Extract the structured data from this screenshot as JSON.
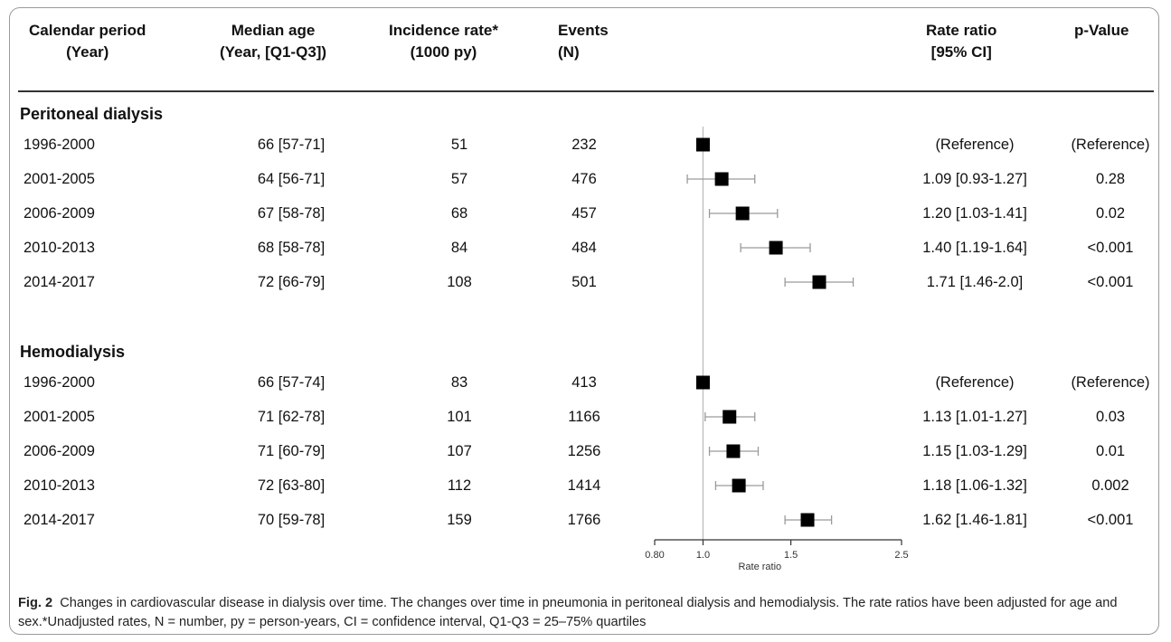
{
  "headers": {
    "period": [
      "Calendar period",
      "(Year)"
    ],
    "age": [
      "Median age",
      "(Year, [Q1-Q3])"
    ],
    "incidence": [
      "Incidence rate*",
      "(1000 py)"
    ],
    "events": [
      "Events",
      "(N)"
    ],
    "ratio": [
      "Rate ratio",
      "[95% CI]"
    ],
    "pvalue": [
      "p-Value"
    ]
  },
  "groups": [
    {
      "name": "Peritoneal dialysis",
      "rows": [
        {
          "period": "1996-2000",
          "age": "66 [57-71]",
          "incidence": "51",
          "events": "232",
          "ratio_text": "(Reference)",
          "p": "(Reference)"
        },
        {
          "period": "2001-2005",
          "age": "64 [56-71]",
          "incidence": "57",
          "events": "476",
          "ratio_text": "1.09 [0.93-1.27]",
          "p": "0.28"
        },
        {
          "period": "2006-2009",
          "age": "67 [58-78]",
          "incidence": "68",
          "events": "457",
          "ratio_text": "1.20 [1.03-1.41]",
          "p": "0.02"
        },
        {
          "period": "2010-2013",
          "age": "68 [58-78]",
          "incidence": "84",
          "events": "484",
          "ratio_text": "1.40 [1.19-1.64]",
          "p": "<0.001"
        },
        {
          "period": "2014-2017",
          "age": "72 [66-79]",
          "incidence": "108",
          "events": "501",
          "ratio_text": "1.71 [1.46-2.0]",
          "p": "<0.001"
        }
      ]
    },
    {
      "name": "Hemodialysis",
      "rows": [
        {
          "period": "1996-2000",
          "age": "66 [57-74]",
          "incidence": "83",
          "events": "413",
          "ratio_text": "(Reference)",
          "p": "(Reference)"
        },
        {
          "period": "2001-2005",
          "age": "71 [62-78]",
          "incidence": "101",
          "events": "1166",
          "ratio_text": "1.13 [1.01-1.27]",
          "p": "0.03"
        },
        {
          "period": "2006-2009",
          "age": "71 [60-79]",
          "incidence": "107",
          "events": "1256",
          "ratio_text": "1.15 [1.03-1.29]",
          "p": "0.01"
        },
        {
          "period": "2010-2013",
          "age": "72 [63-80]",
          "incidence": "112",
          "events": "1414",
          "ratio_text": "1.18 [1.06-1.32]",
          "p": "0.002"
        },
        {
          "period": "2014-2017",
          "age": "70 [59-78]",
          "incidence": "159",
          "events": "1766",
          "ratio_text": "1.62 [1.46-1.81]",
          "p": "<0.001"
        }
      ]
    }
  ],
  "chart_data": {
    "type": "forest",
    "scale": "log",
    "xlabel": "Rate ratio",
    "xticks": [
      "0.80",
      "1.0",
      "1.5",
      "2.5"
    ],
    "xlim": [
      0.8,
      2.5
    ],
    "reference_line": 1.0,
    "series": [
      {
        "name": "Peritoneal dialysis",
        "points": [
          {
            "label": "1996-2000",
            "est": 1.0,
            "lo": null,
            "hi": null
          },
          {
            "label": "2001-2005",
            "est": 1.09,
            "lo": 0.93,
            "hi": 1.27
          },
          {
            "label": "2006-2009",
            "est": 1.2,
            "lo": 1.03,
            "hi": 1.41
          },
          {
            "label": "2010-2013",
            "est": 1.4,
            "lo": 1.19,
            "hi": 1.64
          },
          {
            "label": "2014-2017",
            "est": 1.71,
            "lo": 1.46,
            "hi": 2.0
          }
        ]
      },
      {
        "name": "Hemodialysis",
        "points": [
          {
            "label": "1996-2000",
            "est": 1.0,
            "lo": null,
            "hi": null
          },
          {
            "label": "2001-2005",
            "est": 1.13,
            "lo": 1.01,
            "hi": 1.27
          },
          {
            "label": "2006-2009",
            "est": 1.15,
            "lo": 1.03,
            "hi": 1.29
          },
          {
            "label": "2010-2013",
            "est": 1.18,
            "lo": 1.06,
            "hi": 1.32
          },
          {
            "label": "2014-2017",
            "est": 1.62,
            "lo": 1.46,
            "hi": 1.81
          }
        ]
      }
    ],
    "colors": {
      "marker": "#000000",
      "ci": "#9a9a9a",
      "reference": "#bdbdbd",
      "axis": "#333333"
    }
  },
  "caption": {
    "label": "Fig. 2",
    "text": "Changes in cardiovascular disease in dialysis over time. The changes over time in pneumonia in peritoneal dialysis and hemodialysis. The rate ratios have been adjusted for age and sex.*Unadjusted rates, N = number, py = person-years, CI = confidence interval, Q1-Q3 = 25–75% quartiles"
  }
}
